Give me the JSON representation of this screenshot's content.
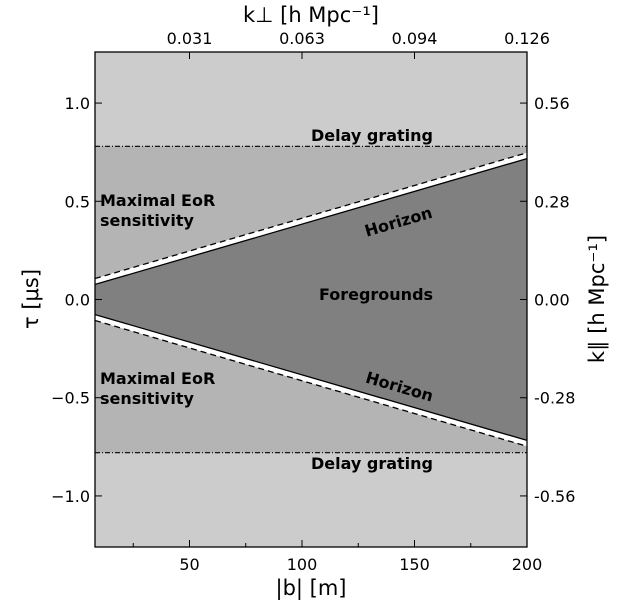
{
  "chart_data": {
    "type": "area",
    "xlabel": "|b| [m]",
    "ylabel": "τ [μs]",
    "top_xlabel": "k⊥ [h Mpc⁻¹]",
    "right_ylabel": "k∥ [h Mpc⁻¹]",
    "xlim": [
      8,
      200
    ],
    "ylim": [
      -1.26,
      1.26
    ],
    "x_ticks": [
      50,
      100,
      150,
      200
    ],
    "x_tick_labels": [
      "50",
      "100",
      "150",
      "200"
    ],
    "y_ticks": [
      -1.0,
      -0.5,
      0.0,
      0.5,
      1.0
    ],
    "y_tick_labels": [
      "−1.0",
      "−0.5",
      "0.0",
      "0.5",
      "1.0"
    ],
    "top_ticks": {
      "positions_m": [
        50,
        100,
        150,
        200
      ],
      "labels": [
        "0.031",
        "0.063",
        "0.094",
        "0.126"
      ]
    },
    "right_ticks": {
      "positions_us": [
        1.0,
        0.5,
        0.0,
        -0.5,
        -1.0
      ],
      "labels": [
        "0.56",
        "0.28",
        "0.00",
        "-0.28",
        "-0.56"
      ]
    },
    "horizon_slope_us_per_m": 0.003336,
    "horizon_offset_us": 0.05,
    "delay_grating_us": 0.78,
    "colors": {
      "outer": "#cccccc",
      "eor": "#b4b4b4",
      "foreground": "#808080"
    },
    "regions": {
      "delay_grating": "Delay grating",
      "eor_line1": "Maximal EoR",
      "eor_line2": "sensitivity",
      "horizon": "Horizon",
      "foregrounds": "Foregrounds"
    }
  }
}
